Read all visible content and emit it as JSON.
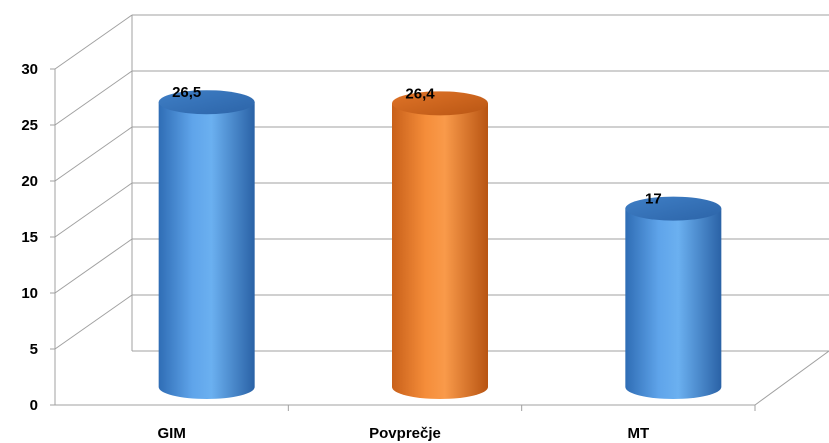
{
  "chart_data": {
    "type": "bar",
    "style": "3d-cylinder",
    "categories": [
      "GIM",
      "Povprečje",
      "MT"
    ],
    "values": [
      26.5,
      26.4,
      17
    ],
    "data_labels": [
      "26,5",
      "26,4",
      "17"
    ],
    "bar_colors": [
      "#4a8fd6",
      "#f28a34",
      "#4a8fd6"
    ],
    "title": "",
    "xlabel": "",
    "ylabel": "",
    "ylim": [
      0,
      30
    ],
    "yticks": [
      0,
      5,
      10,
      15,
      20,
      25,
      30
    ],
    "grid": true,
    "legend": "none"
  }
}
